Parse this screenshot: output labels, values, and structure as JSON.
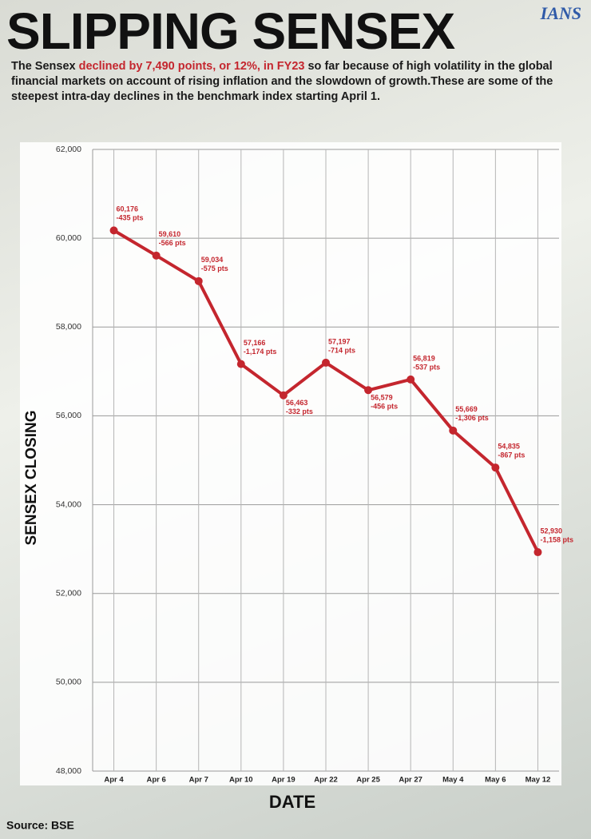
{
  "header": {
    "title": "SLIPPING SENSEX",
    "logo": "IANS",
    "subtitle_parts": [
      "The Sensex ",
      "declined by 7,490 points, or 12%, in FY23",
      " so far because of high volatility in the global financial markets on account of rising inflation and the slowdown of growth.These are some of the steepest intra-day declines in the benchmark index starting April 1."
    ]
  },
  "chart_data": {
    "type": "line",
    "x_label": "DATE",
    "y_label": "SENSEX CLOSING",
    "categories": [
      "Apr 4",
      "Apr 6",
      "Apr 7",
      "Apr 10",
      "Apr 19",
      "Apr 22",
      "Apr 25",
      "Apr 27",
      "May 4",
      "May 6",
      "May 12"
    ],
    "series": [
      {
        "name": "Sensex",
        "color": "#c4262e",
        "values": [
          60176,
          59610,
          59034,
          57166,
          56463,
          57197,
          56579,
          56819,
          55669,
          54835,
          52930
        ],
        "value_labels": [
          "60,176",
          "59,610",
          "59,034",
          "57,166",
          "56,463",
          "57,197",
          "56,579",
          "56,819",
          "55,669",
          "54,835",
          "52,930"
        ],
        "change_labels": [
          "-435 pts",
          "-566 pts",
          "-575 pts",
          "-1,174 pts",
          "-332 pts",
          "-714 pts",
          "-456 pts",
          "-537 pts",
          "-1,306 pts",
          "-867 pts",
          "-1,158 pts"
        ]
      }
    ],
    "ylim": [
      48000,
      62000
    ],
    "yticks": [
      {
        "value": 48000,
        "label": "48,000"
      },
      {
        "value": 50000,
        "label": "50,000"
      },
      {
        "value": 52000,
        "label": "52,000"
      },
      {
        "value": 54000,
        "label": "54,000"
      },
      {
        "value": 56000,
        "label": "56,000"
      },
      {
        "value": 58000,
        "label": "58,000"
      },
      {
        "value": 60000,
        "label": "60,000"
      },
      {
        "value": 62000,
        "label": "62,000"
      }
    ],
    "grid": true
  },
  "footer": {
    "source": "Source: BSE"
  }
}
